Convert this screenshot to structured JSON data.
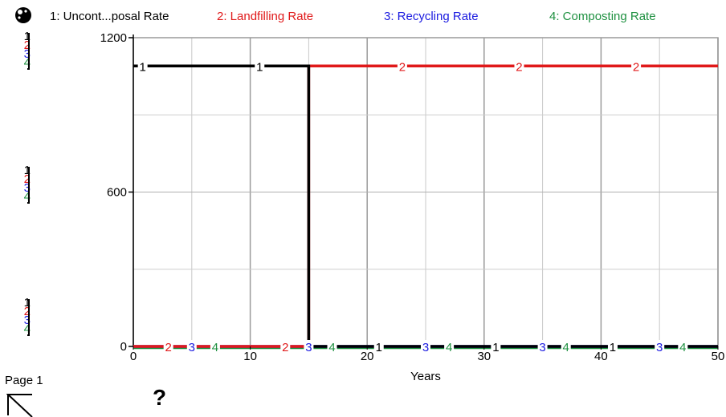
{
  "legend": [
    {
      "label": "1: Uncont...posal Rate",
      "color": "#000000"
    },
    {
      "label": "2: Landfilling Rate",
      "color": "#e0191a"
    },
    {
      "label": "3: Recycling Rate",
      "color": "#1a1ae0"
    },
    {
      "label": "4: Composting Rate",
      "color": "#1e9040"
    }
  ],
  "scale_key": [
    "1",
    "2",
    "3",
    "4"
  ],
  "page_label": "Page 1",
  "help_label": "?",
  "icons": {
    "top_left": "graph-pad-ball-icon",
    "bottom_left": "page-turn-corner-icon"
  },
  "chart_data": {
    "type": "line",
    "xlabel": "Years",
    "ylabel": "",
    "xlim": [
      0,
      50
    ],
    "ylim": [
      0,
      1200
    ],
    "x_ticks": [
      0,
      10,
      20,
      30,
      40,
      50
    ],
    "y_ticks": [
      0,
      600,
      1200
    ],
    "grid": true,
    "series": [
      {
        "name": "1: Uncont...posal Rate",
        "id": "1",
        "color": "#000000",
        "points": [
          [
            0,
            1090
          ],
          [
            15,
            1090
          ],
          [
            15,
            0
          ],
          [
            50,
            0
          ]
        ]
      },
      {
        "name": "2: Landfilling Rate",
        "id": "2",
        "color": "#e0191a",
        "points": [
          [
            0,
            0
          ],
          [
            15,
            0
          ],
          [
            15,
            1090
          ],
          [
            50,
            1090
          ]
        ]
      },
      {
        "name": "3: Recycling Rate",
        "id": "3",
        "color": "#1a1ae0",
        "points": [
          [
            0,
            0
          ],
          [
            50,
            0
          ]
        ]
      },
      {
        "name": "4: Composting Rate",
        "id": "4",
        "color": "#1e9040",
        "points": [
          [
            0,
            0
          ],
          [
            50,
            0
          ]
        ]
      }
    ],
    "line_markers": [
      {
        "series": "1",
        "x": 0.8,
        "y": 1090
      },
      {
        "series": "1",
        "x": 10.8,
        "y": 1090
      },
      {
        "series": "2",
        "x": 23,
        "y": 1090
      },
      {
        "series": "2",
        "x": 33,
        "y": 1090
      },
      {
        "series": "2",
        "x": 43,
        "y": 1090
      },
      {
        "series": "2",
        "x": 3,
        "y": 0
      },
      {
        "series": "3",
        "x": 5,
        "y": 0
      },
      {
        "series": "4",
        "x": 7,
        "y": 0
      },
      {
        "series": "2",
        "x": 13,
        "y": 0
      },
      {
        "series": "3",
        "x": 15,
        "y": 0
      },
      {
        "series": "4",
        "x": 17,
        "y": 0
      },
      {
        "series": "1",
        "x": 21,
        "y": 0
      },
      {
        "series": "3",
        "x": 25,
        "y": 0
      },
      {
        "series": "4",
        "x": 27,
        "y": 0
      },
      {
        "series": "1",
        "x": 31,
        "y": 0
      },
      {
        "series": "3",
        "x": 35,
        "y": 0
      },
      {
        "series": "4",
        "x": 37,
        "y": 0
      },
      {
        "series": "1",
        "x": 41,
        "y": 0
      },
      {
        "series": "3",
        "x": 45,
        "y": 0
      },
      {
        "series": "4",
        "x": 47,
        "y": 0
      }
    ]
  }
}
